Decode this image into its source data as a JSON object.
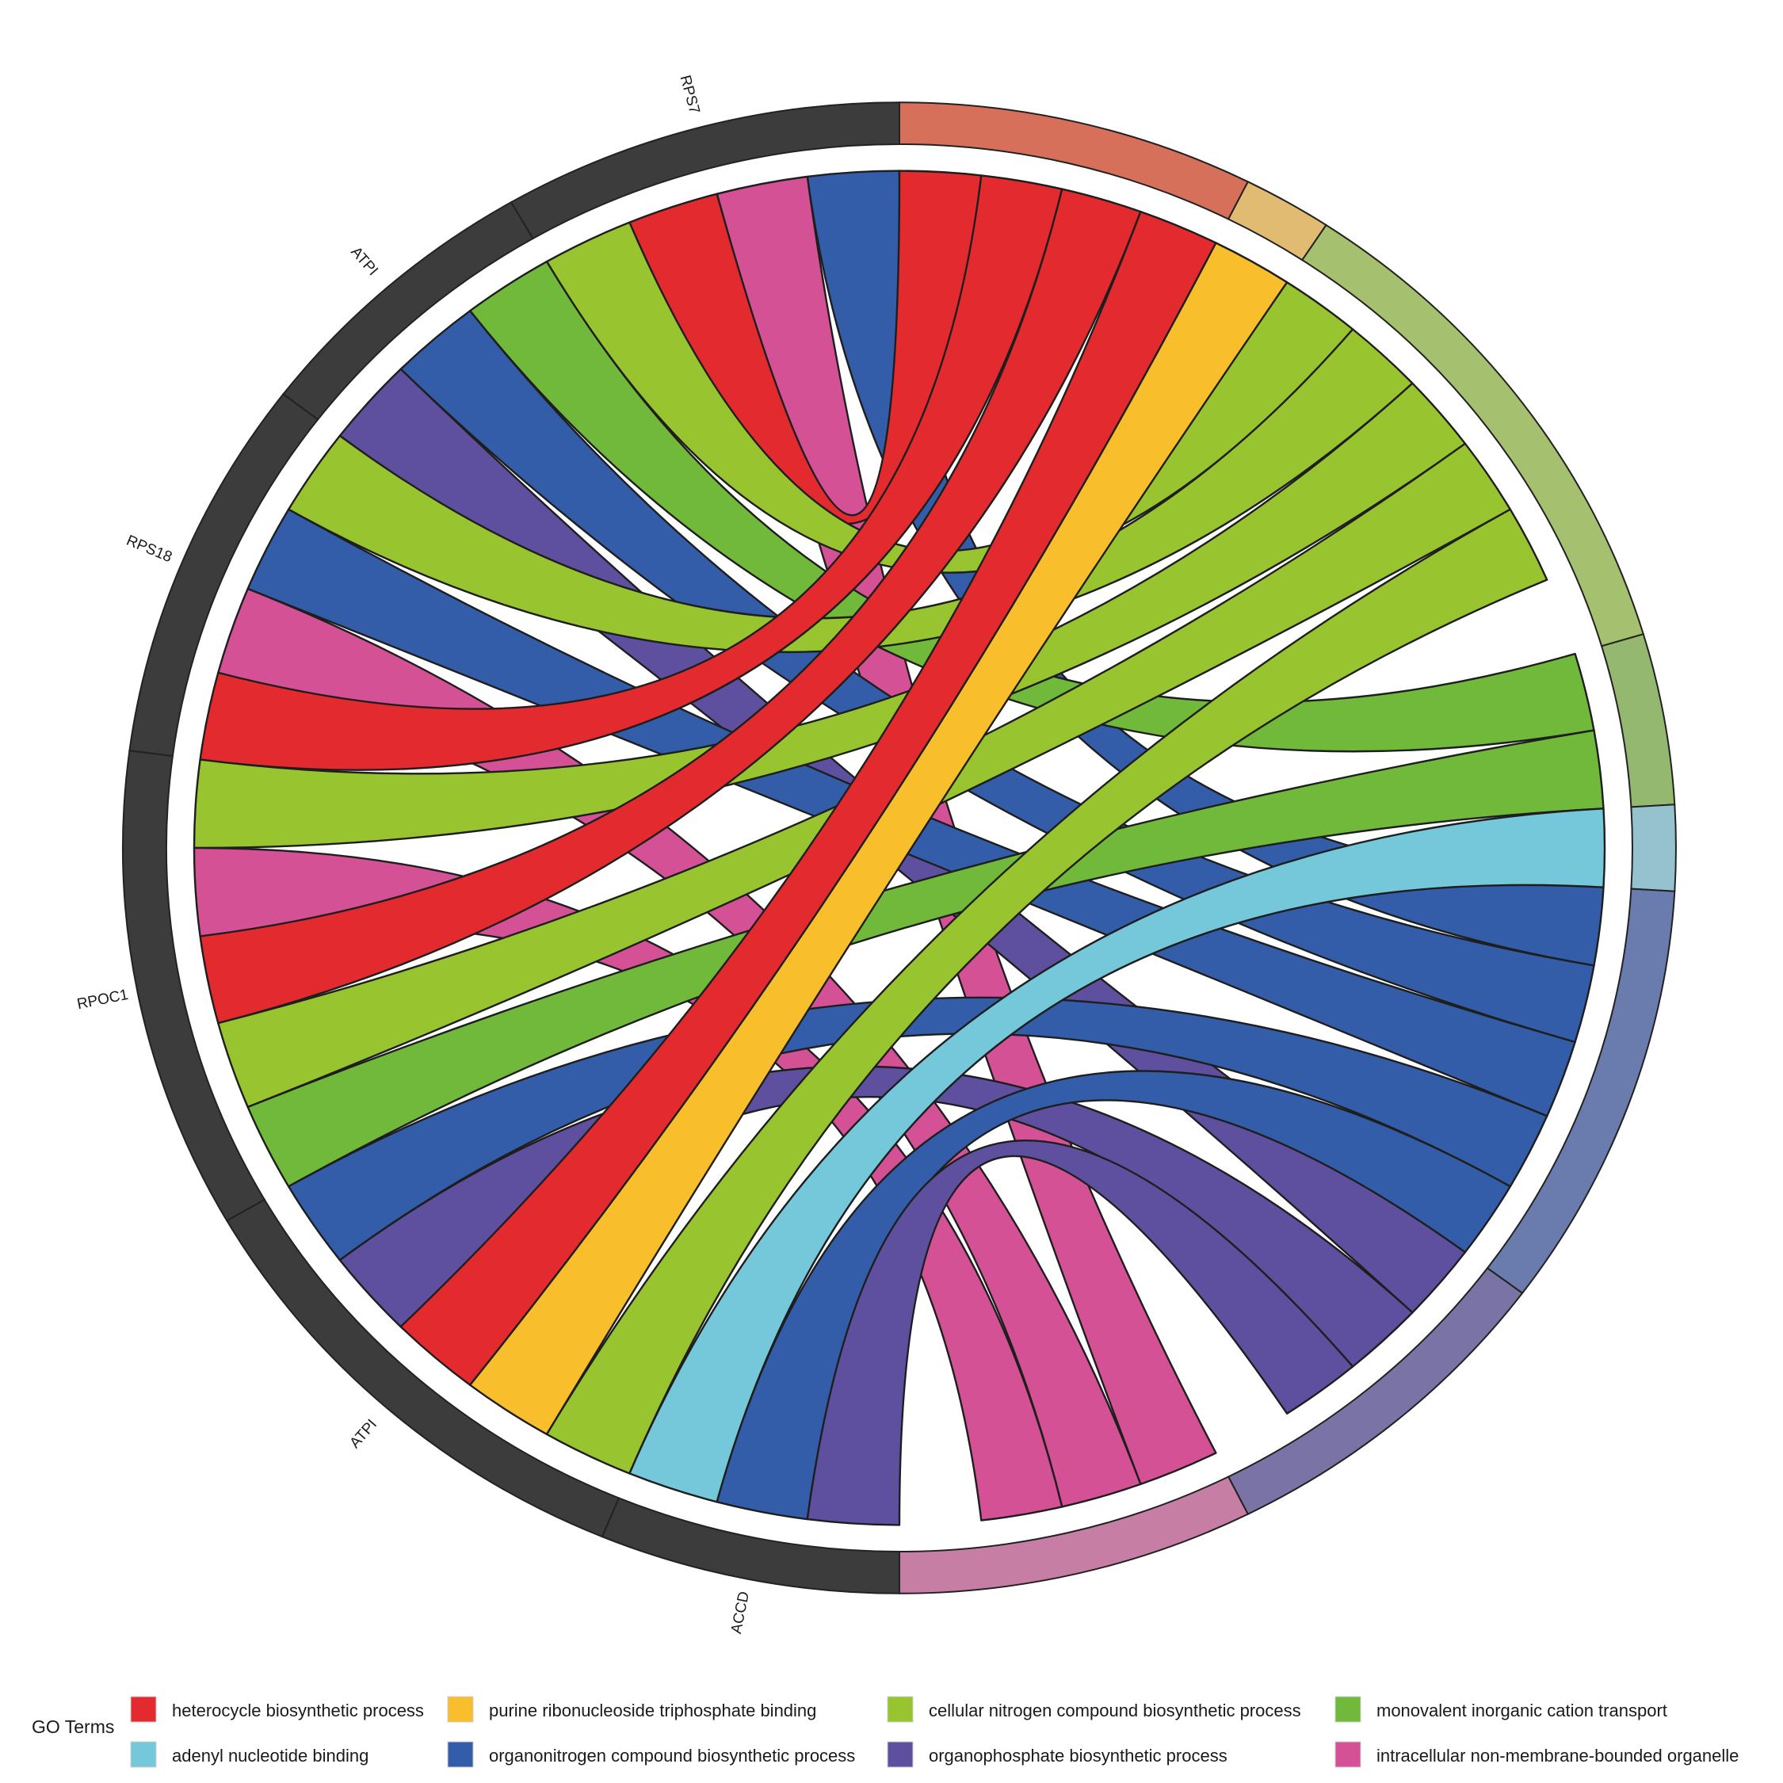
{
  "chart_data": {
    "type": "chord",
    "genes": [
      "RPS7",
      "ATPI",
      "RPS18",
      "RPOC1",
      "ATPI",
      "ACCD"
    ],
    "gene_segments": [
      {
        "gene": "RPS7",
        "ribbons": [
          "organonitrogen compound biosynthetic process",
          "intracellular non-membrane-bounded organelle",
          "heterocycle biosynthetic process",
          "cellular nitrogen compound biosynthetic process"
        ]
      },
      {
        "gene": "ATPI",
        "ribbons": [
          "monovalent inorganic cation transport",
          "organonitrogen compound biosynthetic process",
          "organophosphate biosynthetic process"
        ]
      },
      {
        "gene": "RPS18",
        "ribbons": [
          "cellular nitrogen compound biosynthetic process",
          "organonitrogen compound biosynthetic process",
          "intracellular non-membrane-bounded organelle",
          "heterocycle biosynthetic process"
        ]
      },
      {
        "gene": "RPOC1",
        "ribbons": [
          "cellular nitrogen compound biosynthetic process",
          "intracellular non-membrane-bounded organelle",
          "heterocycle biosynthetic process",
          "cellular nitrogen compound biosynthetic process",
          "monovalent inorganic cation transport"
        ]
      },
      {
        "gene": "ATPI",
        "ribbons": [
          "organonitrogen compound biosynthetic process",
          "organophosphate biosynthetic process",
          "heterocycle biosynthetic process",
          "purine ribonucleoside triphosphate binding",
          "cellular nitrogen compound biosynthetic process"
        ]
      },
      {
        "gene": "ACCD",
        "ribbons": [
          "adenyl nucleotide binding",
          "organonitrogen compound biosynthetic process",
          "organophosphate biosynthetic process"
        ]
      }
    ],
    "term_segments": [
      {
        "term": "heterocycle biosynthetic process",
        "links": 4
      },
      {
        "term": "purine ribonucleoside triphosphate binding",
        "links": 1
      },
      {
        "term": "cellular nitrogen compound biosynthetic process",
        "links": 6
      },
      {
        "term": "monovalent inorganic cation transport",
        "links": 2
      },
      {
        "term": "adenyl nucleotide binding",
        "links": 1
      },
      {
        "term": "organonitrogen compound biosynthetic process",
        "links": 5
      },
      {
        "term": "organophosphate biosynthetic process",
        "links": 4
      },
      {
        "term": "intracellular non-membrane-bounded organelle",
        "links": 4
      }
    ],
    "links": [
      {
        "gene": "RPS7",
        "term": "heterocycle biosynthetic process"
      },
      {
        "gene": "ATPI",
        "term": "heterocycle biosynthetic process"
      },
      {
        "gene": "RPS18",
        "term": "heterocycle biosynthetic process"
      },
      {
        "gene": "RPOC1",
        "term": "heterocycle biosynthetic process"
      },
      {
        "gene": "ATPI",
        "term": "purine ribonucleoside triphosphate binding"
      },
      {
        "gene": "RPS7",
        "term": "cellular nitrogen compound biosynthetic process"
      },
      {
        "gene": "ATPI",
        "term": "cellular nitrogen compound biosynthetic process"
      },
      {
        "gene": "RPS18",
        "term": "cellular nitrogen compound biosynthetic process"
      },
      {
        "gene": "RPOC1",
        "term": "cellular nitrogen compound biosynthetic process"
      },
      {
        "gene": "RPOC1",
        "term": "cellular nitrogen compound biosynthetic process"
      },
      {
        "gene": "ATPI",
        "term": "cellular nitrogen compound biosynthetic process"
      },
      {
        "gene": "ATPI",
        "term": "monovalent inorganic cation transport"
      },
      {
        "gene": "RPOC1",
        "term": "monovalent inorganic cation transport"
      },
      {
        "gene": "ACCD",
        "term": "adenyl nucleotide binding"
      },
      {
        "gene": "RPS7",
        "term": "organonitrogen compound biosynthetic process"
      },
      {
        "gene": "ATPI",
        "term": "organonitrogen compound biosynthetic process"
      },
      {
        "gene": "RPS18",
        "term": "organonitrogen compound biosynthetic process"
      },
      {
        "gene": "ATPI",
        "term": "organonitrogen compound biosynthetic process"
      },
      {
        "gene": "ACCD",
        "term": "organonitrogen compound biosynthetic process"
      },
      {
        "gene": "ATPI",
        "term": "organophosphate biosynthetic process"
      },
      {
        "gene": "ATPI",
        "term": "organophosphate biosynthetic process"
      },
      {
        "gene": "ACCD",
        "term": "organophosphate biosynthetic process"
      },
      {
        "gene": "ATPI",
        "term": "organophosphate biosynthetic process"
      },
      {
        "gene": "RPS7",
        "term": "intracellular non-membrane-bounded organelle"
      },
      {
        "gene": "RPS18",
        "term": "intracellular non-membrane-bounded organelle"
      },
      {
        "gene": "RPOC1",
        "term": "intracellular non-membrane-bounded organelle"
      },
      {
        "gene": "ACCD",
        "term": "intracellular non-membrane-bounded organelle"
      }
    ],
    "legend": {
      "title": "GO Terms",
      "position": "bottom",
      "items": [
        {
          "label": "heterocycle biosynthetic process",
          "color": "#E32A2E"
        },
        {
          "label": "purine ribonucleoside triphosphate binding",
          "color": "#F8BE2C"
        },
        {
          "label": "cellular nitrogen compound biosynthetic process",
          "color": "#97C42F"
        },
        {
          "label": "monovalent inorganic cation transport",
          "color": "#71B93A"
        },
        {
          "label": "adenyl nucleotide binding",
          "color": "#74C8D9"
        },
        {
          "label": "organonitrogen compound biosynthetic process",
          "color": "#335DA8"
        },
        {
          "label": "organophosphate biosynthetic process",
          "color": "#5E509E"
        },
        {
          "label": "intracellular non-membrane-bounded organelle",
          "color": "#D45195"
        }
      ]
    },
    "term_band_colors": [
      "#D6705B",
      "#E2BB72",
      "#A5C16F",
      "#95B870",
      "#96C2CF",
      "#6A7BAE",
      "#7A73A5",
      "#C77EA5"
    ],
    "gene_band_color": "#3C3C3C"
  }
}
